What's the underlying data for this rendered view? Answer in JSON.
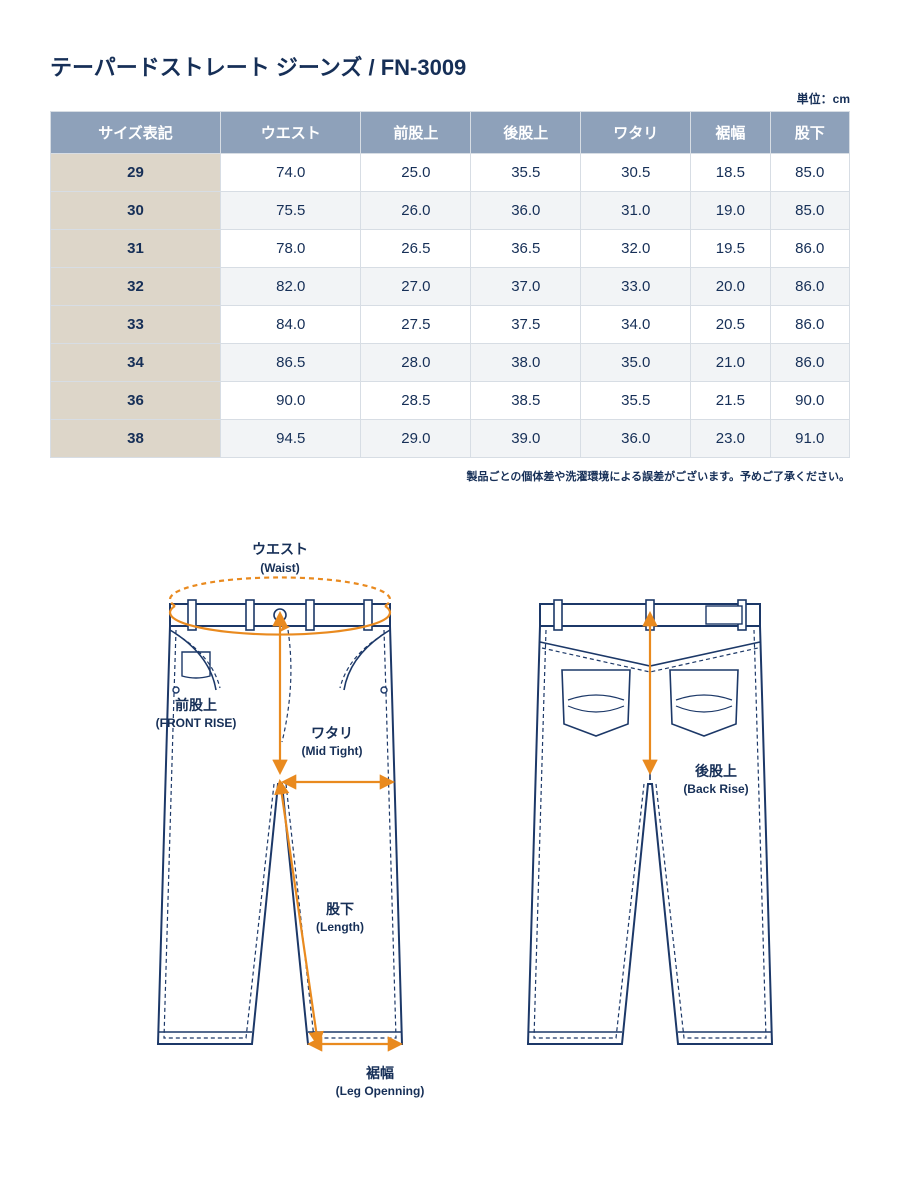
{
  "title": "テーパードストレート ジーンズ / FN-3009",
  "unit_label": "単位：cm",
  "disclaimer": "製品ごとの個体差や洗濯環境による誤差がございます。予めご了承ください。",
  "colors": {
    "text_primary": "#162f57",
    "header_bg": "#8ea1ba",
    "header_text": "#ffffff",
    "size_col_bg": "#ddd6c9",
    "row_alt_bg": "#f2f4f6",
    "border": "#d7dde4",
    "outline": "#1c3868",
    "arrow": "#e98a1f",
    "page_bg": "#ffffff"
  },
  "table": {
    "columns": [
      "サイズ表記",
      "ウエスト",
      "前股上",
      "後股上",
      "ワタリ",
      "裾幅",
      "股下"
    ],
    "rows": [
      [
        "29",
        "74.0",
        "25.0",
        "35.5",
        "30.5",
        "18.5",
        "85.0"
      ],
      [
        "30",
        "75.5",
        "26.0",
        "36.0",
        "31.0",
        "19.0",
        "85.0"
      ],
      [
        "31",
        "78.0",
        "26.5",
        "36.5",
        "32.0",
        "19.5",
        "86.0"
      ],
      [
        "32",
        "82.0",
        "27.0",
        "37.0",
        "33.0",
        "20.0",
        "86.0"
      ],
      [
        "33",
        "84.0",
        "27.5",
        "37.5",
        "34.0",
        "20.5",
        "86.0"
      ],
      [
        "34",
        "86.5",
        "28.0",
        "38.0",
        "35.0",
        "21.0",
        "86.0"
      ],
      [
        "36",
        "90.0",
        "28.5",
        "38.5",
        "35.5",
        "21.5",
        "90.0"
      ],
      [
        "38",
        "94.5",
        "29.0",
        "39.0",
        "36.0",
        "23.0",
        "91.0"
      ]
    ]
  },
  "diagram": {
    "labels": {
      "waist_jp": "ウエスト",
      "waist_en": "(Waist)",
      "front_rise_jp": "前股上",
      "front_rise_en": "(FRONT RISE)",
      "mid_thigh_jp": "ワタリ",
      "mid_thigh_en": "(Mid Tight)",
      "length_jp": "股下",
      "length_en": "(Length)",
      "leg_open_jp": "裾幅",
      "leg_open_en": "(Leg Openning)",
      "back_rise_jp": "後股上",
      "back_rise_en": "(Back Rise)"
    },
    "stroke_width_outline": 2,
    "stroke_width_dash": 1.2,
    "stroke_width_arrow": 2.2
  }
}
